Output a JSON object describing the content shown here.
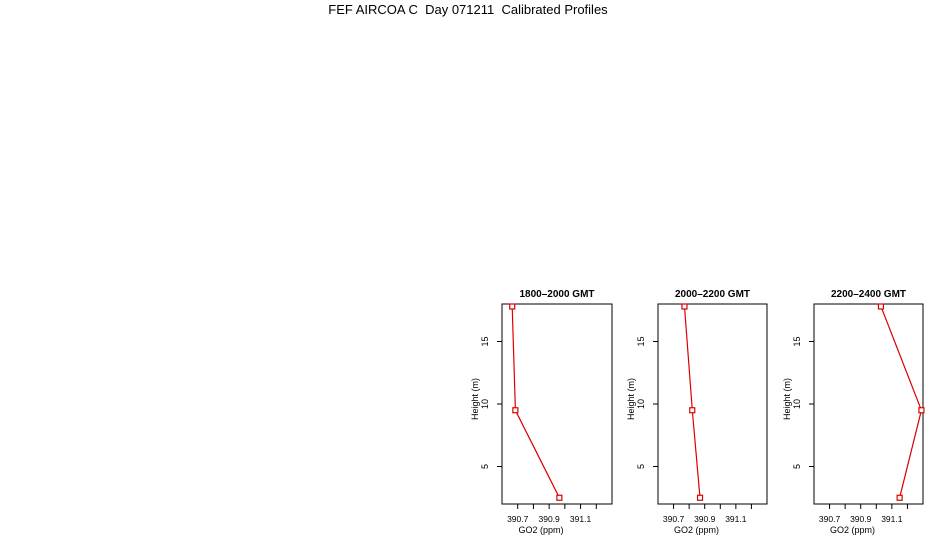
{
  "page": {
    "title": "FEF AIRCOA C  Day 071211  Calibrated Profiles"
  },
  "colors": {
    "line": "#dd0000",
    "marker": "#dd0000",
    "axis": "#000000"
  },
  "chart_data": [
    {
      "type": "line",
      "title": "1800–2000 GMT",
      "xlabel": "GO2 (ppm)",
      "ylabel": "Height (m)",
      "xlim": [
        390.6,
        391.3
      ],
      "ylim": [
        2,
        18
      ],
      "xticks": [
        390.7,
        390.8,
        390.9,
        391.0,
        391.1,
        391.2
      ],
      "xtick_labels": [
        "390.7",
        "",
        "390.9",
        "",
        "391.1",
        ""
      ],
      "yticks": [
        5,
        10,
        15
      ],
      "ytick_labels": [
        "5",
        "10",
        "15"
      ],
      "series": [
        {
          "x": [
            390.965,
            390.685,
            390.665
          ],
          "y": [
            2.5,
            9.5,
            17.8
          ]
        }
      ]
    },
    {
      "type": "line",
      "title": "2000–2200 GMT",
      "xlabel": "GO2 (ppm)",
      "ylabel": "Height (m)",
      "xlim": [
        390.6,
        391.3
      ],
      "ylim": [
        2,
        18
      ],
      "xticks": [
        390.7,
        390.8,
        390.9,
        391.0,
        391.1,
        391.2
      ],
      "xtick_labels": [
        "390.7",
        "",
        "390.9",
        "",
        "391.1",
        ""
      ],
      "yticks": [
        5,
        10,
        15
      ],
      "ytick_labels": [
        "5",
        "10",
        "15"
      ],
      "series": [
        {
          "x": [
            390.87,
            390.82,
            390.77
          ],
          "y": [
            2.5,
            9.5,
            17.8
          ]
        }
      ]
    },
    {
      "type": "line",
      "title": "2200–2400 GMT",
      "xlabel": "GO2 (ppm)",
      "ylabel": "Height (m)",
      "xlim": [
        390.6,
        391.3
      ],
      "ylim": [
        2,
        18
      ],
      "xticks": [
        390.7,
        390.8,
        390.9,
        391.0,
        391.1,
        391.2
      ],
      "xtick_labels": [
        "390.7",
        "",
        "390.9",
        "",
        "391.1",
        ""
      ],
      "yticks": [
        5,
        10,
        15
      ],
      "ytick_labels": [
        "5",
        "10",
        "15"
      ],
      "series": [
        {
          "x": [
            391.15,
            391.29,
            391.03
          ],
          "y": [
            2.5,
            9.5,
            17.8
          ]
        }
      ]
    }
  ]
}
